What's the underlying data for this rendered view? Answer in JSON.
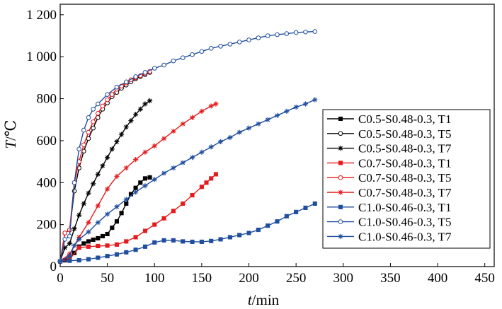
{
  "chart_data": {
    "type": "line",
    "xlabel_var": "t",
    "xlabel_unit": "/min",
    "ylabel_var": "T",
    "ylabel_unit": "/℃",
    "xlim": [
      0,
      460
    ],
    "ylim": [
      0,
      1250
    ],
    "x_ticks": [
      0,
      50,
      100,
      150,
      200,
      250,
      300,
      350,
      400,
      450
    ],
    "x_tick_labels": [
      "0",
      "50",
      "100",
      "150",
      "200",
      "250",
      "300",
      "350",
      "400",
      "450"
    ],
    "y_ticks": [
      0,
      200,
      400,
      600,
      800,
      1000,
      1200
    ],
    "y_tick_labels": [
      "0",
      "200",
      "400",
      "600",
      "800",
      "1 000",
      "1 200"
    ],
    "grid": false,
    "legend_position": "right",
    "series": [
      {
        "name": "C0.5-S0.48-0.3, T1",
        "color": "#000000",
        "marker": "square",
        "x": [
          0,
          5,
          10,
          15,
          20,
          25,
          30,
          35,
          40,
          45,
          50,
          55,
          60,
          65,
          70,
          75,
          80,
          85,
          90,
          95
        ],
        "y": [
          25,
          30,
          38,
          65,
          95,
          110,
          120,
          128,
          135,
          145,
          155,
          185,
          215,
          255,
          300,
          345,
          375,
          400,
          420,
          425
        ]
      },
      {
        "name": "C0.5-S0.48-0.3, T5",
        "color": "#000000",
        "marker": "circle",
        "x": [
          0,
          5,
          10,
          15,
          20,
          25,
          30,
          35,
          40,
          45,
          50,
          55,
          60,
          65,
          70,
          75,
          80,
          85,
          90,
          95
        ],
        "y": [
          25,
          160,
          175,
          360,
          470,
          550,
          610,
          660,
          710,
          750,
          780,
          810,
          830,
          850,
          865,
          880,
          895,
          905,
          915,
          925
        ]
      },
      {
        "name": "C0.5-S0.48-0.3, T7",
        "color": "#000000",
        "marker": "star",
        "x": [
          0,
          5,
          10,
          15,
          20,
          25,
          30,
          35,
          40,
          45,
          50,
          55,
          60,
          65,
          70,
          75,
          80,
          85,
          90,
          95
        ],
        "y": [
          25,
          90,
          110,
          180,
          245,
          300,
          350,
          395,
          440,
          480,
          520,
          560,
          595,
          630,
          665,
          695,
          725,
          750,
          775,
          790
        ]
      },
      {
        "name": "C0.7-S0.48-0.3, T1",
        "color": "#e41a1c",
        "marker": "square",
        "x": [
          0,
          10,
          20,
          30,
          40,
          50,
          60,
          70,
          80,
          90,
          100,
          110,
          120,
          130,
          140,
          150,
          155,
          160,
          165
        ],
        "y": [
          25,
          35,
          90,
          95,
          98,
          100,
          105,
          120,
          140,
          170,
          200,
          230,
          265,
          300,
          340,
          380,
          400,
          420,
          440
        ]
      },
      {
        "name": "C0.7-S0.48-0.3, T5",
        "color": "#e41a1c",
        "marker": "circle",
        "x": [
          0,
          5,
          10,
          15,
          20,
          25,
          30,
          35,
          40,
          45,
          50,
          55,
          60,
          65,
          70,
          75,
          80,
          85,
          90,
          95
        ],
        "y": [
          25,
          160,
          175,
          400,
          500,
          580,
          640,
          690,
          730,
          765,
          795,
          820,
          845,
          860,
          875,
          890,
          900,
          910,
          920,
          930
        ]
      },
      {
        "name": "C0.7-S0.48-0.3, T7",
        "color": "#e41a1c",
        "marker": "star",
        "x": [
          0,
          10,
          20,
          30,
          40,
          50,
          60,
          70,
          80,
          90,
          100,
          110,
          120,
          130,
          140,
          150,
          160,
          165
        ],
        "y": [
          25,
          60,
          140,
          210,
          290,
          370,
          430,
          470,
          510,
          545,
          575,
          610,
          645,
          680,
          710,
          740,
          765,
          775
        ]
      },
      {
        "name": "C1.0-S0.46-0.3, T1",
        "color": "#1f4e9e",
        "marker": "square",
        "x": [
          0,
          10,
          20,
          30,
          40,
          50,
          60,
          70,
          80,
          90,
          100,
          110,
          120,
          130,
          140,
          150,
          160,
          170,
          180,
          190,
          200,
          210,
          220,
          230,
          240,
          250,
          260,
          270
        ],
        "y": [
          25,
          28,
          30,
          35,
          42,
          50,
          58,
          68,
          80,
          95,
          115,
          125,
          125,
          120,
          118,
          118,
          122,
          130,
          140,
          150,
          160,
          175,
          195,
          215,
          240,
          260,
          280,
          300
        ]
      },
      {
        "name": "C1.0-S0.46-0.3, T5",
        "color": "#1f4e9e",
        "marker": "circle",
        "x": [
          0,
          5,
          10,
          15,
          20,
          25,
          30,
          35,
          40,
          50,
          60,
          70,
          80,
          90,
          100,
          110,
          120,
          130,
          140,
          150,
          160,
          170,
          180,
          190,
          200,
          210,
          220,
          230,
          240,
          250,
          260,
          270
        ],
        "y": [
          25,
          130,
          145,
          400,
          560,
          650,
          710,
          750,
          775,
          820,
          855,
          880,
          905,
          925,
          945,
          960,
          980,
          995,
          1010,
          1025,
          1040,
          1050,
          1060,
          1070,
          1080,
          1090,
          1100,
          1105,
          1110,
          1115,
          1118,
          1120
        ]
      },
      {
        "name": "C1.0-S0.46-0.3, T7",
        "color": "#1f4e9e",
        "marker": "star",
        "x": [
          0,
          10,
          15,
          20,
          30,
          40,
          50,
          60,
          70,
          80,
          90,
          100,
          110,
          120,
          130,
          140,
          150,
          160,
          170,
          180,
          190,
          200,
          210,
          220,
          230,
          240,
          250,
          260,
          270
        ],
        "y": [
          25,
          50,
          100,
          130,
          165,
          210,
          250,
          285,
          320,
          355,
          385,
          415,
          445,
          470,
          495,
          520,
          545,
          570,
          595,
          615,
          640,
          660,
          680,
          700,
          720,
          740,
          760,
          775,
          795
        ]
      }
    ]
  }
}
